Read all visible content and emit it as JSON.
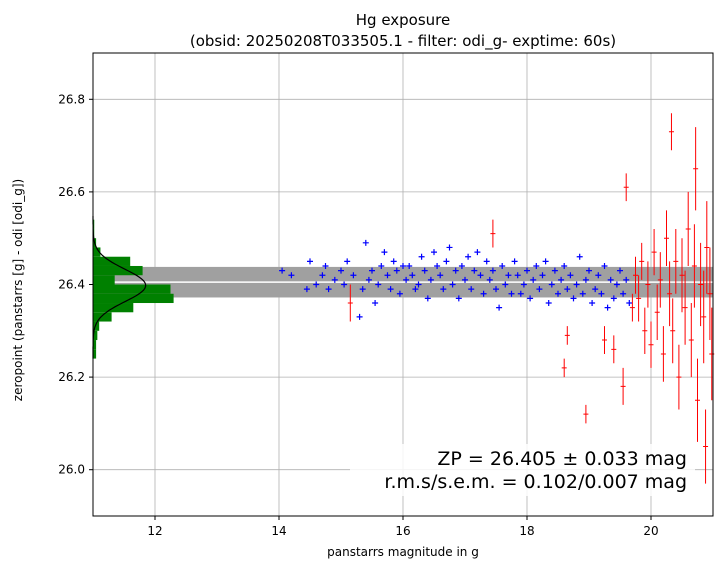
{
  "chart_data": {
    "type": "scatter",
    "title": "Hg exposure",
    "subtitle": "(obsid: 20250208T033505.1 - filter: odi_g- exptime: 60s)",
    "xlabel": "panstarrs magnitude in g",
    "ylabel": "zeropoint (panstarrs [g] - odi [odi_g])",
    "xlim": [
      11.0,
      21.0
    ],
    "ylim": [
      25.9,
      26.9
    ],
    "xticks": [
      12,
      14,
      16,
      18,
      20
    ],
    "yticks": [
      26.0,
      26.2,
      26.4,
      26.6,
      26.8
    ],
    "grid": true,
    "zeropoint": 26.405,
    "zeropoint_band": 0.033,
    "annotation_lines": [
      "ZP = 26.405 ± 0.033 mag",
      "r.m.s/s.e.m. = 0.102/0.007 mag"
    ],
    "colors": {
      "used": "#0000ff",
      "rejected": "#ff0000",
      "histogram": "#008000",
      "band": "#a0a0a0",
      "median_line": "#ffffff",
      "gauss": "#000000"
    },
    "histogram": {
      "bin_edges": [
        26.24,
        26.26,
        26.28,
        26.3,
        26.32,
        26.34,
        26.36,
        26.38,
        26.4,
        26.42,
        26.44,
        26.46,
        26.48,
        26.5,
        26.52,
        26.54
      ],
      "max_x": [
        11.05,
        11.05,
        11.07,
        11.1,
        11.3,
        11.65,
        12.3,
        12.25,
        11.35,
        11.8,
        11.6,
        11.12,
        11.05,
        11.02,
        11.02
      ],
      "gauss_mu": 26.398,
      "gauss_sigma": 0.035,
      "gauss_peak_x": 11.85
    },
    "series": [
      {
        "name": "used",
        "points": [
          [
            14.05,
            26.43
          ],
          [
            14.2,
            26.42
          ],
          [
            14.45,
            26.39
          ],
          [
            14.5,
            26.45
          ],
          [
            14.6,
            26.4
          ],
          [
            14.7,
            26.42
          ],
          [
            14.75,
            26.44
          ],
          [
            14.8,
            26.39
          ],
          [
            14.9,
            26.41
          ],
          [
            15.0,
            26.43
          ],
          [
            15.05,
            26.4
          ],
          [
            15.1,
            26.45
          ],
          [
            15.2,
            26.42
          ],
          [
            15.3,
            26.33
          ],
          [
            15.35,
            26.39
          ],
          [
            15.4,
            26.49
          ],
          [
            15.45,
            26.41
          ],
          [
            15.5,
            26.43
          ],
          [
            15.55,
            26.36
          ],
          [
            15.6,
            26.4
          ],
          [
            15.65,
            26.44
          ],
          [
            15.7,
            26.47
          ],
          [
            15.75,
            26.42
          ],
          [
            15.8,
            26.39
          ],
          [
            15.85,
            26.45
          ],
          [
            15.9,
            26.43
          ],
          [
            15.95,
            26.38
          ],
          [
            16.0,
            26.44
          ],
          [
            16.05,
            26.41
          ],
          [
            16.1,
            26.44
          ],
          [
            16.15,
            26.42
          ],
          [
            16.2,
            26.39
          ],
          [
            16.25,
            26.4
          ],
          [
            16.3,
            26.46
          ],
          [
            16.35,
            26.43
          ],
          [
            16.4,
            26.37
          ],
          [
            16.45,
            26.41
          ],
          [
            16.5,
            26.47
          ],
          [
            16.55,
            26.44
          ],
          [
            16.6,
            26.42
          ],
          [
            16.65,
            26.39
          ],
          [
            16.7,
            26.45
          ],
          [
            16.75,
            26.48
          ],
          [
            16.8,
            26.4
          ],
          [
            16.85,
            26.43
          ],
          [
            16.9,
            26.37
          ],
          [
            16.95,
            26.44
          ],
          [
            17.0,
            26.41
          ],
          [
            17.05,
            26.46
          ],
          [
            17.1,
            26.39
          ],
          [
            17.15,
            26.43
          ],
          [
            17.2,
            26.47
          ],
          [
            17.25,
            26.42
          ],
          [
            17.3,
            26.38
          ],
          [
            17.35,
            26.45
          ],
          [
            17.4,
            26.41
          ],
          [
            17.45,
            26.43
          ],
          [
            17.5,
            26.39
          ],
          [
            17.55,
            26.35
          ],
          [
            17.6,
            26.44
          ],
          [
            17.65,
            26.4
          ],
          [
            17.7,
            26.42
          ],
          [
            17.75,
            26.38
          ],
          [
            17.8,
            26.45
          ],
          [
            17.85,
            26.42
          ],
          [
            17.9,
            26.38
          ],
          [
            17.95,
            26.4
          ],
          [
            18.0,
            26.43
          ],
          [
            18.05,
            26.37
          ],
          [
            18.1,
            26.41
          ],
          [
            18.15,
            26.44
          ],
          [
            18.2,
            26.39
          ],
          [
            18.25,
            26.42
          ],
          [
            18.3,
            26.45
          ],
          [
            18.35,
            26.36
          ],
          [
            18.4,
            26.4
          ],
          [
            18.45,
            26.43
          ],
          [
            18.5,
            26.38
          ],
          [
            18.55,
            26.41
          ],
          [
            18.6,
            26.44
          ],
          [
            18.65,
            26.39
          ],
          [
            18.7,
            26.42
          ],
          [
            18.75,
            26.37
          ],
          [
            18.8,
            26.4
          ],
          [
            18.85,
            26.46
          ],
          [
            18.9,
            26.38
          ],
          [
            18.95,
            26.41
          ],
          [
            19.0,
            26.43
          ],
          [
            19.05,
            26.36
          ],
          [
            19.1,
            26.39
          ],
          [
            19.15,
            26.42
          ],
          [
            19.2,
            26.38
          ],
          [
            19.25,
            26.44
          ],
          [
            19.3,
            26.35
          ],
          [
            19.35,
            26.41
          ],
          [
            19.4,
            26.37
          ],
          [
            19.45,
            26.4
          ],
          [
            19.5,
            26.43
          ],
          [
            19.55,
            26.38
          ],
          [
            19.6,
            26.41
          ],
          [
            19.65,
            26.36
          ]
        ]
      },
      {
        "name": "rejected",
        "points": [
          [
            15.15,
            26.36,
            0.04
          ],
          [
            17.45,
            26.51,
            0.03
          ],
          [
            18.6,
            26.22,
            0.02
          ],
          [
            18.65,
            26.29,
            0.02
          ],
          [
            18.95,
            26.12,
            0.02
          ],
          [
            19.25,
            26.28,
            0.03
          ],
          [
            19.4,
            26.26,
            0.03
          ],
          [
            19.55,
            26.18,
            0.04
          ],
          [
            19.6,
            26.61,
            0.03
          ],
          [
            19.7,
            26.35,
            0.03
          ],
          [
            19.75,
            26.42,
            0.04
          ],
          [
            19.8,
            26.37,
            0.05
          ],
          [
            19.85,
            26.45,
            0.04
          ],
          [
            19.9,
            26.3,
            0.05
          ],
          [
            19.95,
            26.4,
            0.05
          ],
          [
            20.0,
            26.27,
            0.05
          ],
          [
            20.05,
            26.47,
            0.05
          ],
          [
            20.1,
            26.34,
            0.06
          ],
          [
            20.15,
            26.41,
            0.06
          ],
          [
            20.2,
            26.25,
            0.06
          ],
          [
            20.25,
            26.5,
            0.06
          ],
          [
            20.3,
            26.38,
            0.07
          ],
          [
            20.33,
            26.73,
            0.04
          ],
          [
            20.35,
            26.3,
            0.07
          ],
          [
            20.4,
            26.45,
            0.07
          ],
          [
            20.45,
            26.2,
            0.07
          ],
          [
            20.5,
            26.42,
            0.08
          ],
          [
            20.55,
            26.35,
            0.08
          ],
          [
            20.6,
            26.52,
            0.08
          ],
          [
            20.65,
            26.28,
            0.08
          ],
          [
            20.7,
            26.44,
            0.09
          ],
          [
            20.72,
            26.65,
            0.09
          ],
          [
            20.75,
            26.15,
            0.09
          ],
          [
            20.8,
            26.4,
            0.09
          ],
          [
            20.85,
            26.33,
            0.1
          ],
          [
            20.88,
            26.05,
            0.08
          ],
          [
            20.9,
            26.48,
            0.1
          ],
          [
            20.95,
            26.38,
            0.1
          ],
          [
            20.98,
            26.25,
            0.1
          ]
        ]
      }
    ]
  }
}
